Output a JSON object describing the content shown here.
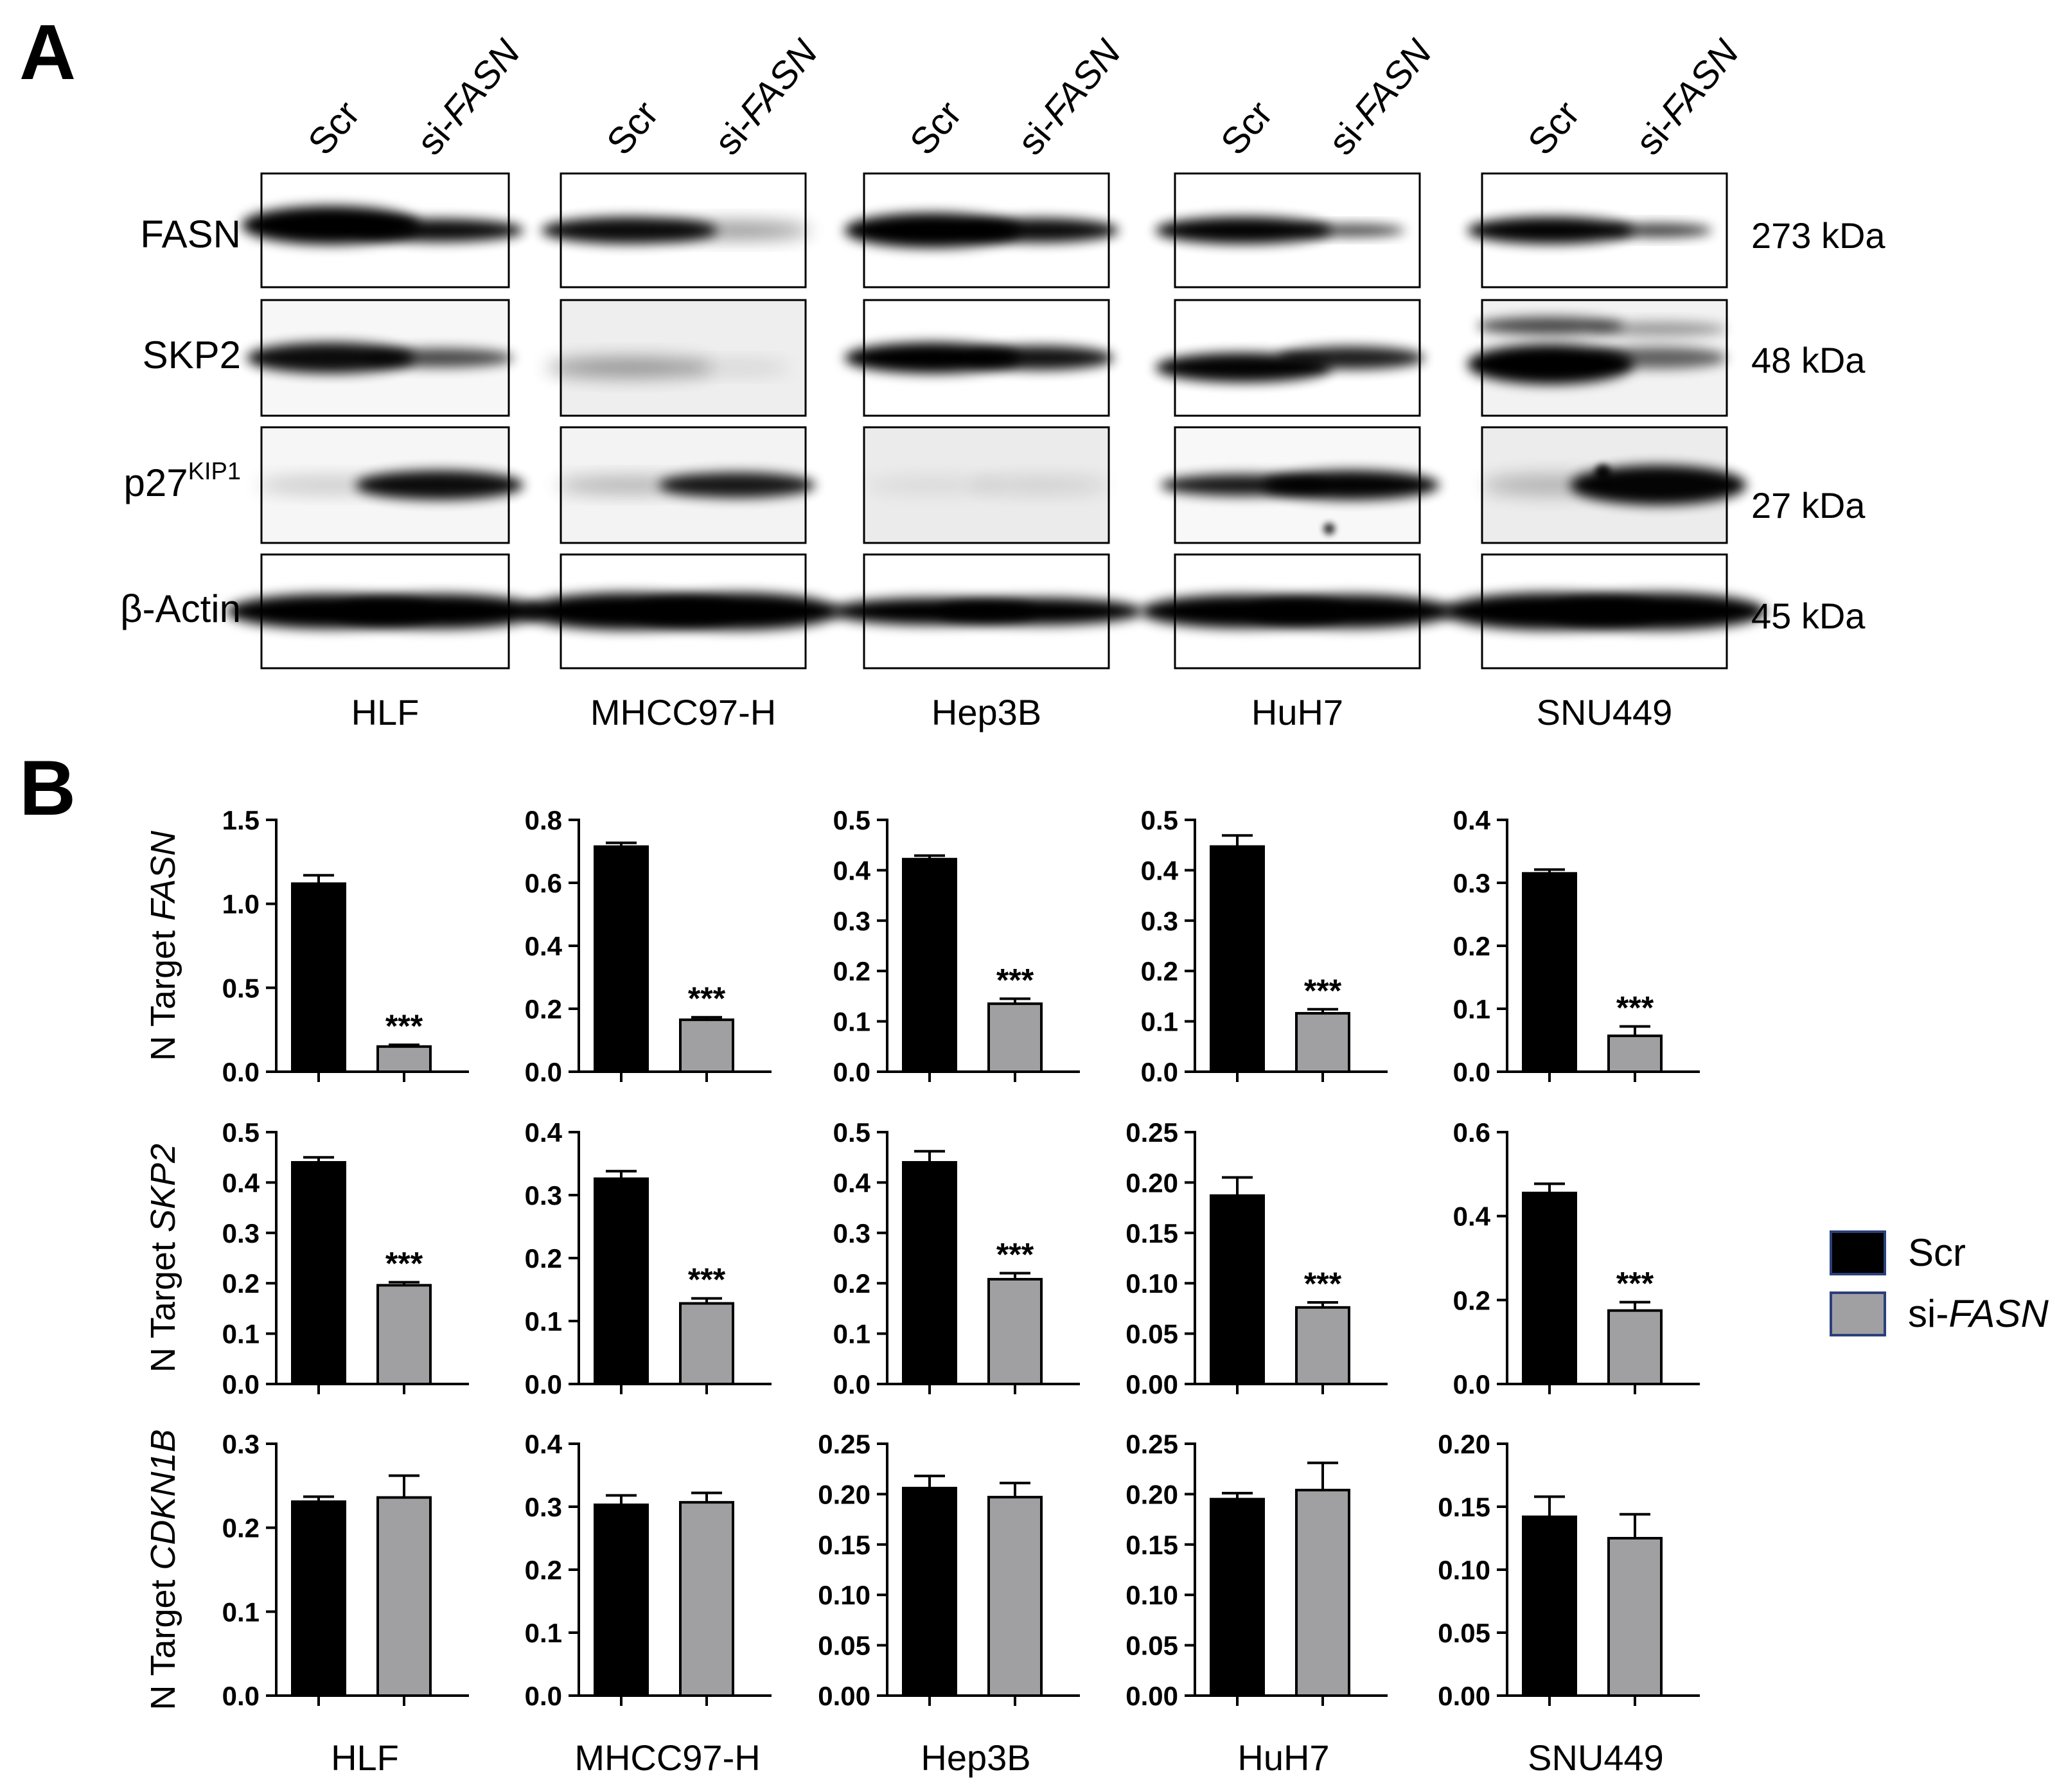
{
  "panel_labels": {
    "a": "A",
    "b": "B"
  },
  "colors": {
    "scr": "#000000",
    "si": "#a0a0a3",
    "legend_border": "#2b3f7a"
  },
  "western": {
    "lane_labels": [
      "Scr",
      "si-FASN"
    ],
    "cell_lines": [
      "HLF",
      "MHCC97-H",
      "Hep3B",
      "HuH7",
      "SNU449"
    ],
    "proteins": [
      {
        "label": "FASN",
        "sup": "",
        "kda": "273 kDa"
      },
      {
        "label": "SKP2",
        "sup": "",
        "kda": "48 kDa"
      },
      {
        "label": "p27",
        "sup": "KIP1",
        "kda": "27 kDa"
      },
      {
        "label": "β-Actin",
        "sup": "",
        "kda": "45 kDa"
      }
    ]
  },
  "legend": {
    "scr": "Scr",
    "si_prefix": "si-",
    "si_gene": "FASN"
  },
  "y_prefix": "N Target ",
  "significance_mark": "***",
  "chart_data": {
    "type": "bar",
    "categories": [
      "Scr",
      "si-FASN"
    ],
    "cell_lines": [
      "HLF",
      "MHCC97-H",
      "Hep3B",
      "HuH7",
      "SNU449"
    ],
    "rows": [
      {
        "gene": "FASN",
        "ylabel": "N Target FASN",
        "panels": [
          {
            "cell": "HLF",
            "ylim": [
              0,
              1.5
            ],
            "ticks": [
              "0.0",
              "0.5",
              "1.0",
              "1.5"
            ],
            "values": [
              1.12,
              0.15
            ],
            "errors": [
              0.05,
              0.01
            ],
            "sig": [
              false,
              true
            ]
          },
          {
            "cell": "MHCC97-H",
            "ylim": [
              0,
              0.8
            ],
            "ticks": [
              "0.0",
              "0.2",
              "0.4",
              "0.6",
              "0.8"
            ],
            "values": [
              0.715,
              0.165
            ],
            "errors": [
              0.012,
              0.008
            ],
            "sig": [
              false,
              true
            ]
          },
          {
            "cell": "Hep3B",
            "ylim": [
              0,
              0.5
            ],
            "ticks": [
              "0.0",
              "0.1",
              "0.2",
              "0.3",
              "0.4",
              "0.5"
            ],
            "values": [
              0.422,
              0.135
            ],
            "errors": [
              0.007,
              0.01
            ],
            "sig": [
              false,
              true
            ]
          },
          {
            "cell": "HuH7",
            "ylim": [
              0,
              0.5
            ],
            "ticks": [
              "0.0",
              "0.1",
              "0.2",
              "0.3",
              "0.4",
              "0.5"
            ],
            "values": [
              0.447,
              0.116
            ],
            "errors": [
              0.022,
              0.008
            ],
            "sig": [
              false,
              true
            ]
          },
          {
            "cell": "SNU449",
            "ylim": [
              0,
              0.4
            ],
            "ticks": [
              "0.0",
              "0.1",
              "0.2",
              "0.3",
              "0.4"
            ],
            "values": [
              0.315,
              0.057
            ],
            "errors": [
              0.006,
              0.015
            ],
            "sig": [
              false,
              true
            ]
          }
        ]
      },
      {
        "gene": "SKP2",
        "ylabel": "N Target SKP2",
        "panels": [
          {
            "cell": "HLF",
            "ylim": [
              0,
              0.5
            ],
            "ticks": [
              "0.0",
              "0.1",
              "0.2",
              "0.3",
              "0.4",
              "0.5"
            ],
            "values": [
              0.44,
              0.196
            ],
            "errors": [
              0.01,
              0.006
            ],
            "sig": [
              false,
              true
            ]
          },
          {
            "cell": "MHCC97-H",
            "ylim": [
              0,
              0.4
            ],
            "ticks": [
              "0.0",
              "0.1",
              "0.2",
              "0.3",
              "0.4"
            ],
            "values": [
              0.326,
              0.128
            ],
            "errors": [
              0.012,
              0.008
            ],
            "sig": [
              false,
              true
            ]
          },
          {
            "cell": "Hep3B",
            "ylim": [
              0,
              0.5
            ],
            "ticks": [
              "0.0",
              "0.1",
              "0.2",
              "0.3",
              "0.4",
              "0.5"
            ],
            "values": [
              0.44,
              0.208
            ],
            "errors": [
              0.022,
              0.012
            ],
            "sig": [
              false,
              true
            ]
          },
          {
            "cell": "HuH7",
            "ylim": [
              0,
              0.25
            ],
            "ticks": [
              "0.00",
              "0.05",
              "0.10",
              "0.15",
              "0.20",
              "0.25"
            ],
            "values": [
              0.187,
              0.076
            ],
            "errors": [
              0.018,
              0.005
            ],
            "sig": [
              false,
              true
            ]
          },
          {
            "cell": "SNU449",
            "ylim": [
              0,
              0.6
            ],
            "ticks": [
              "0.0",
              "0.2",
              "0.4",
              "0.6"
            ],
            "values": [
              0.455,
              0.175
            ],
            "errors": [
              0.022,
              0.02
            ],
            "sig": [
              false,
              true
            ]
          }
        ]
      },
      {
        "gene": "CDKN1B",
        "ylabel": "N Target CDKN1B",
        "panels": [
          {
            "cell": "HLF",
            "ylim": [
              0,
              0.3
            ],
            "ticks": [
              "0.0",
              "0.1",
              "0.2",
              "0.3"
            ],
            "values": [
              0.231,
              0.236
            ],
            "errors": [
              0.006,
              0.026
            ],
            "sig": [
              false,
              false
            ]
          },
          {
            "cell": "MHCC97-H",
            "ylim": [
              0,
              0.4
            ],
            "ticks": [
              "0.0",
              "0.1",
              "0.2",
              "0.3",
              "0.4"
            ],
            "values": [
              0.303,
              0.307
            ],
            "errors": [
              0.015,
              0.015
            ],
            "sig": [
              false,
              false
            ]
          },
          {
            "cell": "Hep3B",
            "ylim": [
              0,
              0.25
            ],
            "ticks": [
              "0.00",
              "0.05",
              "0.10",
              "0.15",
              "0.20",
              "0.25"
            ],
            "values": [
              0.206,
              0.197
            ],
            "errors": [
              0.012,
              0.014
            ],
            "sig": [
              false,
              false
            ]
          },
          {
            "cell": "HuH7",
            "ylim": [
              0,
              0.25
            ],
            "ticks": [
              "0.00",
              "0.05",
              "0.10",
              "0.15",
              "0.20",
              "0.25"
            ],
            "values": [
              0.195,
              0.204
            ],
            "errors": [
              0.006,
              0.027
            ],
            "sig": [
              false,
              false
            ]
          },
          {
            "cell": "SNU449",
            "ylim": [
              0,
              0.2
            ],
            "ticks": [
              "0.00",
              "0.05",
              "0.10",
              "0.15",
              "0.20"
            ],
            "values": [
              0.142,
              0.125
            ],
            "errors": [
              0.016,
              0.019
            ],
            "sig": [
              false,
              false
            ]
          }
        ]
      }
    ]
  }
}
